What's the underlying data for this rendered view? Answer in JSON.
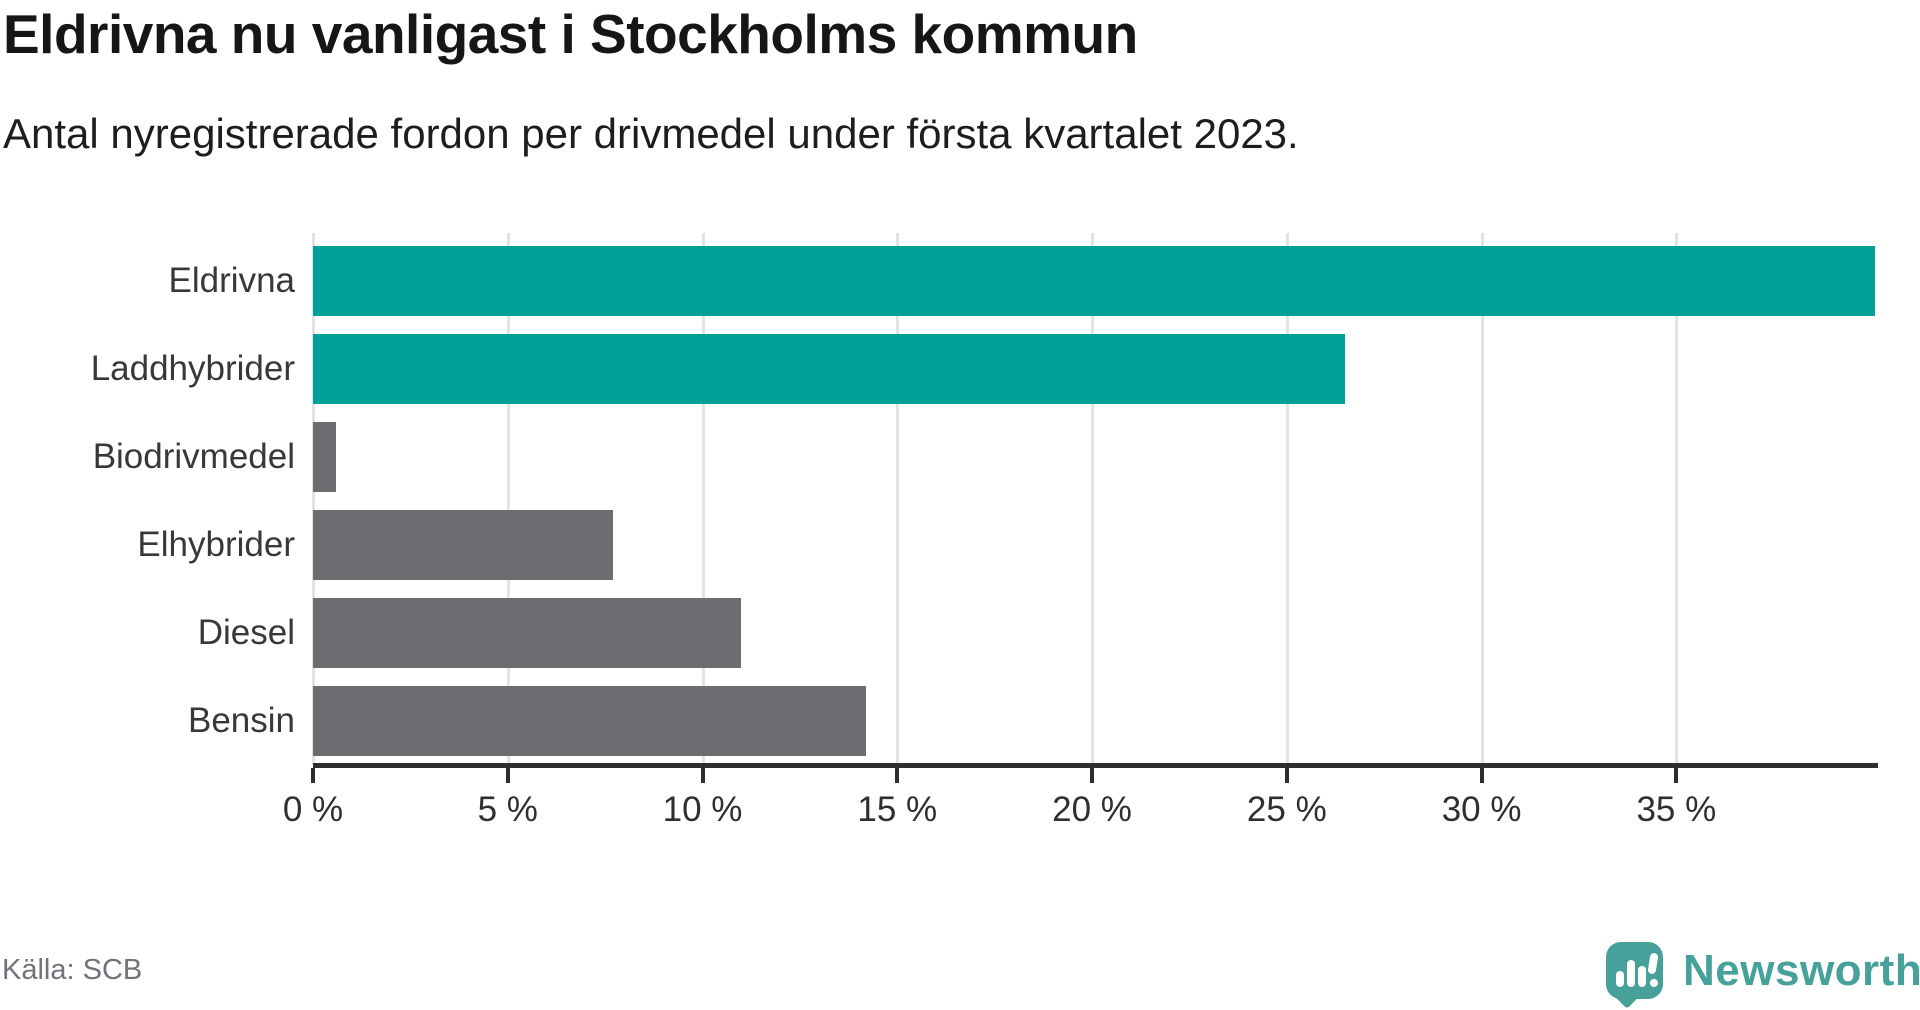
{
  "header": {
    "title": "Eldrivna nu vanligast i Stockholms kommun",
    "subtitle": "Antal nyregistrerade fordon per drivmedel under första kvartalet 2023."
  },
  "source": {
    "label": "Källa: SCB"
  },
  "branding": {
    "name": "Newsworthy",
    "logo_icon": "speech-bubble-bar-chart-icon"
  },
  "colors": {
    "accent": "#00a099",
    "muted_bar": "#6c6c71",
    "grid": "#e3e3e3",
    "axis": "#2e2e2e",
    "logo": "#46a19a"
  },
  "chart_data": {
    "type": "bar",
    "orientation": "horizontal",
    "title": "Eldrivna nu vanligast i Stockholms kommun",
    "subtitle": "Antal nyregistrerade fordon per drivmedel under första kvartalet 2023.",
    "categories": [
      "Eldrivna",
      "Laddhybrider",
      "Biodrivmedel",
      "Elhybrider",
      "Diesel",
      "Bensin"
    ],
    "values": [
      40.1,
      26.5,
      0.6,
      7.7,
      11.0,
      14.2
    ],
    "series_colors": [
      "accent",
      "accent",
      "muted",
      "muted",
      "muted",
      "muted"
    ],
    "unit": "%",
    "xlim": [
      0,
      40.1
    ],
    "x_ticks": [
      0,
      5,
      10,
      15,
      20,
      25,
      30,
      35
    ],
    "x_tick_labels": [
      "0 %",
      "5 %",
      "10 %",
      "15 %",
      "20 %",
      "25 %",
      "30 %",
      "35 %"
    ],
    "grid": "vertical-gridlines-behind-bars",
    "legend": "none"
  }
}
